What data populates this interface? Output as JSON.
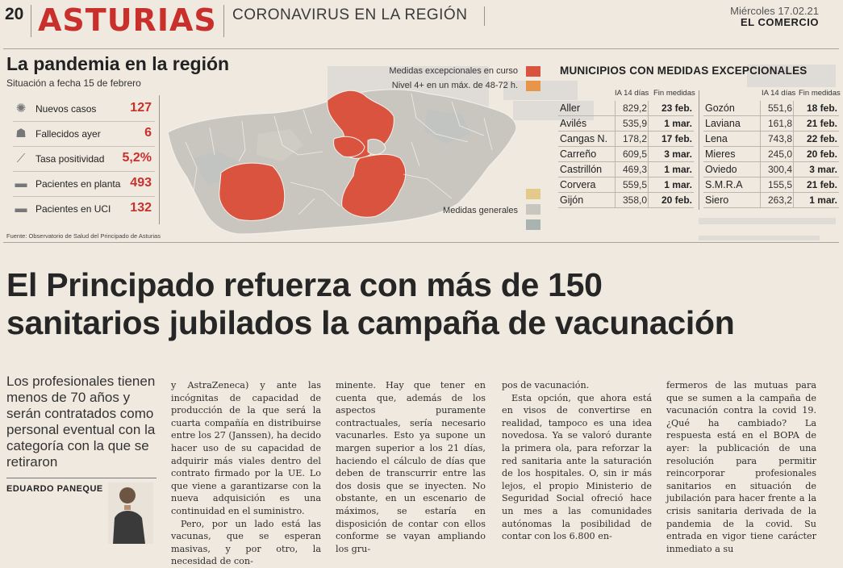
{
  "header": {
    "page_number": "20",
    "section": "ASTURIAS",
    "subsection": "CORONAVIRUS EN LA REGIÓN",
    "date": "Miércoles 17.02.21",
    "newspaper": "EL COMERCIO"
  },
  "infographic": {
    "title": "La pandemia en la región",
    "subtitle": "Situación a fecha 15 de febrero",
    "stats": [
      {
        "label": "Nuevos casos",
        "value": "127",
        "icon": "virus-icon"
      },
      {
        "label": "Fallecidos ayer",
        "value": "6",
        "icon": "gravestone-icon"
      },
      {
        "label": "Tasa positividad",
        "value": "5,2%",
        "icon": "test-tube-icon"
      },
      {
        "label": "Pacientes en planta",
        "value": "493",
        "icon": "hospital-bed-icon"
      },
      {
        "label": "Pacientes en UCI",
        "value": "132",
        "icon": "icu-bed-icon"
      }
    ],
    "source": "Fuente: Observatorio de Salud del Principado de Asturias",
    "legend": {
      "exceptional": "Medidas excepcionales en curso",
      "level4": "Nivel 4+ en un máx. de 48-72 h.",
      "general": "Medidas generales"
    },
    "colors": {
      "exceptional": "#d9533f",
      "level4": "#e8954a",
      "general_1": "#e3c98a",
      "general_2": "#c9c6c0",
      "general_3": "#a9b3af"
    }
  },
  "table": {
    "title": "MUNICIPIOS CON MEDIDAS EXCEPCIONALES",
    "col_ia": "IA 14 días",
    "col_fin": "Fin medidas",
    "left": [
      {
        "name": "Aller",
        "ia": "829,2",
        "fin": "23 feb."
      },
      {
        "name": "Avilés",
        "ia": "535,9",
        "fin": "1 mar."
      },
      {
        "name": "Cangas N.",
        "ia": "178,2",
        "fin": "17 feb."
      },
      {
        "name": "Carreño",
        "ia": "609,5",
        "fin": "3 mar."
      },
      {
        "name": "Castrillón",
        "ia": "469,3",
        "fin": "1 mar."
      },
      {
        "name": "Corvera",
        "ia": "559,5",
        "fin": "1 mar."
      },
      {
        "name": "Gijón",
        "ia": "358,0",
        "fin": "20 feb."
      }
    ],
    "right": [
      {
        "name": "Gozón",
        "ia": "551,6",
        "fin": "18 feb."
      },
      {
        "name": "Laviana",
        "ia": "161,8",
        "fin": "21 feb."
      },
      {
        "name": "Lena",
        "ia": "743,8",
        "fin": "22 feb."
      },
      {
        "name": "Mieres",
        "ia": "245,0",
        "fin": "20 feb."
      },
      {
        "name": "Oviedo",
        "ia": "300,4",
        "fin": "3 mar."
      },
      {
        "name": "S.M.R.A",
        "ia": "155,5",
        "fin": "21 feb."
      },
      {
        "name": "Siero",
        "ia": "263,2",
        "fin": "1 mar."
      }
    ]
  },
  "article": {
    "headline_1": "El Principado refuerza con más de 150",
    "headline_2": "sanitarios jubilados la campaña de vacunación",
    "kicker": "Los profesionales tienen menos de 70 años y serán contratados como personal eventual con la categoría con la que se retiraron",
    "byline": "EDUARDO PANEQUE",
    "col1": "y AstraZeneca) y ante las incógnitas de capacidad de producción de la que será la cuarta compañía en distribuirse entre los 27 (Janssen), ha decido hacer uso de su capacidad de adquirir más viales dentro del contrato firmado por la UE. Lo que viene a garantizarse con la nueva adquisición es una continuidad en el suministro.",
    "col1b": "Pero, por un lado está las vacunas, que se esperan masivas, y por otro, la necesidad de con-",
    "col2": "minente. Hay que tener en cuenta que, además de los aspectos puramente contractuales, sería necesario vacunarles. Esto ya supone un margen superior a los 21 días, haciendo el cálculo de días que deben de transcurrir entre las dos dosis que se inyecten. No obstante, en un escenario de máximos, se estaría en disposición de contar con ellos conforme se vayan ampliando los gru-",
    "col3": "pos de vacunación.",
    "col3b": "Esta opción, que ahora está en visos de convertirse en realidad, tampoco es una idea novedosa. Ya se valoró durante la primera ola, para reforzar la red sanitaria ante la saturación de los hospitales. O, sin ir más lejos, el propio Ministerio de Seguridad Social ofreció hace un mes a las comunidades autónomas la posibilidad de contar con los 6.800 en-",
    "col4": "fermeros de las mutuas para que se sumen a la campaña de vacunación contra la covid 19. ¿Qué ha cambiado? La respuesta está en el BOPA de ayer: la publicación de una resolución para permitir reincorporar profesionales sanitarios en situación de jubilación para hacer frente a la crisis sanitaria derivada de la pandemia de la covid. Su entrada en vigor tiene carácter inmediato a su"
  }
}
